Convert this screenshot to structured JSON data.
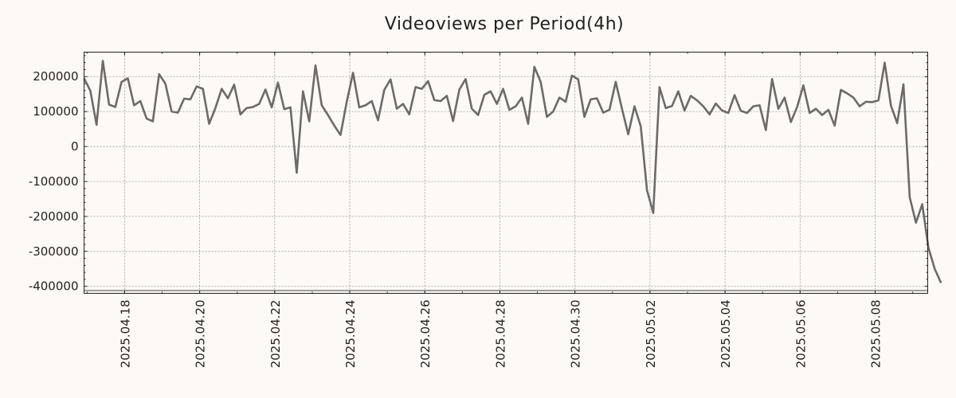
{
  "colors": {
    "background": "#fdf9f6",
    "line": "#6b6b6b"
  },
  "chart_data": {
    "type": "line",
    "title": "Videoviews per Period(4h)",
    "xlabel": "",
    "ylabel": "",
    "grid": true,
    "x_start": "2025-04-16T22:00",
    "period_hours": 4,
    "xlim_days": [
      0,
      22.48
    ],
    "ylim": [
      -420000,
      270000
    ],
    "yticks": [
      200000,
      100000,
      0,
      -100000,
      -200000,
      -300000,
      -400000
    ],
    "ytick_labels": [
      "200000",
      "100000",
      "0",
      "-100000",
      "-200000",
      "-300000",
      "-400000"
    ],
    "xticks_days": [
      1.08,
      3.08,
      5.08,
      7.08,
      9.08,
      11.08,
      13.08,
      15.08,
      17.08,
      19.08,
      21.08
    ],
    "xtick_labels": [
      "2025.04.18",
      "2025.04.20",
      "2025.04.22",
      "2025.04.24",
      "2025.04.26",
      "2025.04.28",
      "2025.04.30",
      "2025.05.02",
      "2025.05.04",
      "2025.05.06",
      "2025.05.08"
    ],
    "series": [
      {
        "name": "Videoviews",
        "values": [
          195000,
          160000,
          62000,
          245000,
          120000,
          113000,
          185000,
          195000,
          118000,
          130000,
          80000,
          72000,
          207000,
          180000,
          100000,
          97000,
          137000,
          135000,
          172000,
          165000,
          65000,
          110000,
          165000,
          138000,
          177000,
          92000,
          110000,
          113000,
          122000,
          163000,
          112000,
          183000,
          107000,
          112000,
          -75000,
          158000,
          72000,
          232000,
          118000,
          90000,
          60000,
          33000,
          128000,
          211000,
          112000,
          118000,
          130000,
          75000,
          162000,
          192000,
          108000,
          122000,
          92000,
          170000,
          165000,
          187000,
          133000,
          130000,
          145000,
          73000,
          163000,
          193000,
          108000,
          90000,
          148000,
          158000,
          122000,
          165000,
          105000,
          115000,
          140000,
          65000,
          228000,
          185000,
          85000,
          100000,
          140000,
          128000,
          203000,
          192000,
          85000,
          135000,
          138000,
          97000,
          105000,
          185000,
          108000,
          35000,
          115000,
          58000,
          -125000,
          -190000,
          170000,
          110000,
          116000,
          158000,
          103000,
          145000,
          132000,
          115000,
          92000,
          123000,
          103000,
          96000,
          147000,
          102000,
          96000,
          115000,
          118000,
          47000,
          193000,
          108000,
          140000,
          70000,
          113000,
          175000,
          96000,
          108000,
          90000,
          105000,
          60000,
          162000,
          152000,
          140000,
          115000,
          128000,
          127000,
          132000,
          240000,
          117000,
          67000,
          178000,
          -145000,
          -218000,
          -165000,
          -290000,
          -350000,
          -390000
        ]
      }
    ]
  }
}
